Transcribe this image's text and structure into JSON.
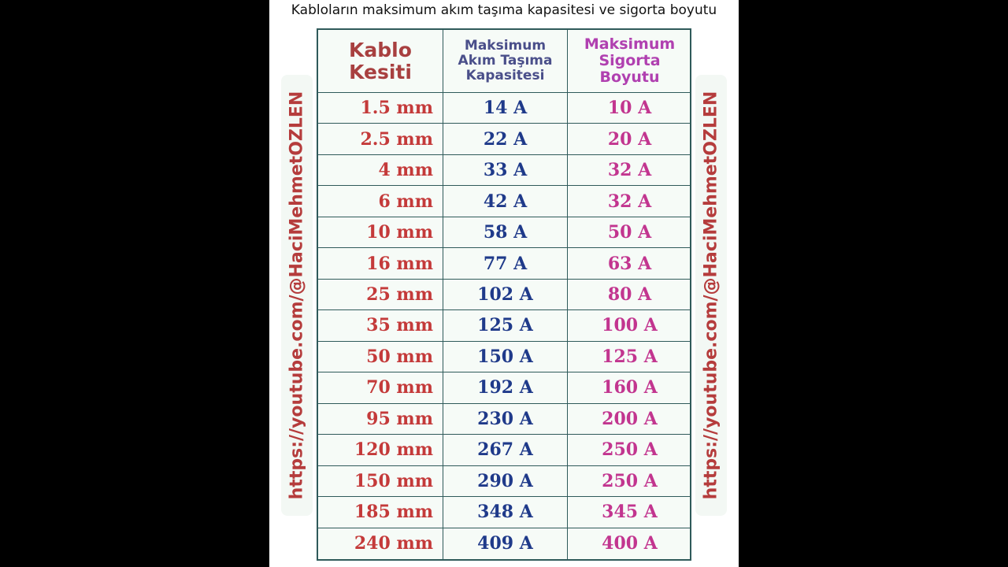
{
  "header": {
    "title": "Kabloların maksimum akım taşıma kapasitesi ve sigorta boyutu"
  },
  "watermark": {
    "left": "https://youtube.com/@HaciMehmetOZLEN",
    "right": "https://youtube.com/@HaciMehmetOZLEN"
  },
  "table": {
    "headers": [
      [
        "Kablo",
        "Kesiti"
      ],
      [
        "Maksimum",
        "Akım Taşıma",
        "Kapasitesi"
      ],
      [
        "Maksimum",
        "Sigorta",
        "Boyutu"
      ]
    ],
    "rows": [
      [
        "1.5 mm",
        "14 A",
        "10 A"
      ],
      [
        "2.5 mm",
        "22 A",
        "20 A"
      ],
      [
        "4 mm",
        "33 A",
        "32 A"
      ],
      [
        "6 mm",
        "42 A",
        "32 A"
      ],
      [
        "10 mm",
        "58 A",
        "50 A"
      ],
      [
        "16 mm",
        "77 A",
        "63 A"
      ],
      [
        "25 mm",
        "102 A",
        "80 A"
      ],
      [
        "35 mm",
        "125 A",
        "100 A"
      ],
      [
        "50 mm",
        "150 A",
        "125 A"
      ],
      [
        "70 mm",
        "192 A",
        "160 A"
      ],
      [
        "95 mm",
        "230 A",
        "200 A"
      ],
      [
        "120 mm",
        "267 A",
        "250 A"
      ],
      [
        "150 mm",
        "290 A",
        "250 A"
      ],
      [
        "185 mm",
        "348 A",
        "345 A"
      ],
      [
        "240 mm",
        "409 A",
        "400 A"
      ]
    ]
  }
}
